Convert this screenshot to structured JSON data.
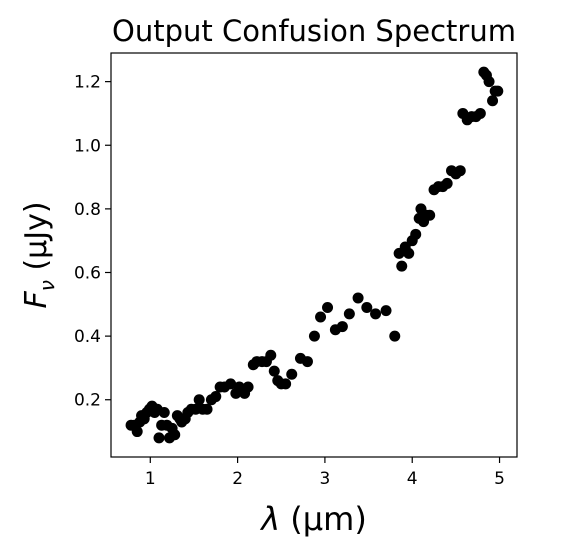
{
  "chart_data": {
    "type": "scatter",
    "title": "Output Confusion Spectrum",
    "xlabel": "λ (μm)",
    "xlabel_parts": {
      "sym": "λ",
      "rest": " (μm)"
    },
    "ylabel": "Fν (μJy)",
    "ylabel_parts": {
      "sym": "F",
      "sub": "ν",
      "rest": " (μJy)"
    },
    "xlim": [
      0.55,
      5.2
    ],
    "ylim": [
      0.02,
      1.29
    ],
    "xticks": [
      1,
      2,
      3,
      4,
      5
    ],
    "xtick_labels": [
      "1",
      "2",
      "3",
      "4",
      "5"
    ],
    "yticks": [
      0.2,
      0.4,
      0.6,
      0.8,
      1.0,
      1.2
    ],
    "ytick_labels": [
      "0.2",
      "0.4",
      "0.6",
      "0.8",
      "1.0",
      "1.2"
    ],
    "grid": false,
    "legend": "none",
    "marker_color": "#000000",
    "series": [
      {
        "x": [
          0.78,
          0.82,
          0.85,
          0.88,
          0.9,
          0.93,
          0.96,
          0.99,
          1.02,
          1.05,
          1.08,
          1.1,
          1.13,
          1.16,
          1.19,
          1.22,
          1.25,
          1.28,
          1.31,
          1.34,
          1.36,
          1.4,
          1.43,
          1.47,
          1.52,
          1.56,
          1.6,
          1.65,
          1.7,
          1.75,
          1.8,
          1.85,
          1.92,
          1.98,
          2.02,
          2.08,
          2.12,
          2.18,
          2.22,
          2.28,
          2.33,
          2.38,
          2.42,
          2.46,
          2.5,
          2.55,
          2.62,
          2.72,
          2.8,
          2.88,
          2.95,
          3.03,
          3.12,
          3.2,
          3.28,
          3.38,
          3.48,
          3.58,
          3.7,
          3.8,
          3.85,
          3.88,
          3.92,
          3.96,
          4.0,
          4.04,
          4.08,
          4.1,
          4.13,
          4.16,
          4.2,
          4.25,
          4.3,
          4.35,
          4.4,
          4.45,
          4.5,
          4.55,
          4.58,
          4.63,
          4.68,
          4.73,
          4.78,
          4.82,
          4.85,
          4.88,
          4.92,
          4.95,
          4.98
        ],
        "y": [
          0.12,
          0.12,
          0.1,
          0.13,
          0.15,
          0.14,
          0.16,
          0.17,
          0.18,
          0.16,
          0.17,
          0.08,
          0.12,
          0.16,
          0.12,
          0.08,
          0.11,
          0.09,
          0.15,
          0.14,
          0.13,
          0.14,
          0.16,
          0.17,
          0.17,
          0.2,
          0.17,
          0.17,
          0.2,
          0.21,
          0.24,
          0.24,
          0.25,
          0.22,
          0.24,
          0.22,
          0.24,
          0.31,
          0.32,
          0.32,
          0.32,
          0.34,
          0.29,
          0.26,
          0.25,
          0.25,
          0.28,
          0.33,
          0.32,
          0.4,
          0.46,
          0.49,
          0.42,
          0.43,
          0.47,
          0.52,
          0.49,
          0.47,
          0.48,
          0.4,
          0.66,
          0.62,
          0.68,
          0.66,
          0.7,
          0.72,
          0.77,
          0.8,
          0.76,
          0.78,
          0.78,
          0.86,
          0.87,
          0.87,
          0.88,
          0.92,
          0.91,
          0.92,
          1.1,
          1.08,
          1.09,
          1.09,
          1.1,
          1.23,
          1.22,
          1.2,
          1.14,
          1.17,
          1.17
        ]
      }
    ]
  }
}
